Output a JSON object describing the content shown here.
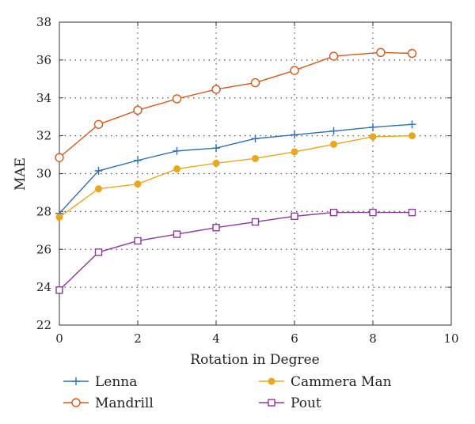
{
  "chart_data": {
    "type": "line",
    "xlabel": "Rotation in Degree",
    "ylabel": "MAE",
    "xlim": [
      0,
      10
    ],
    "ylim": [
      22,
      38
    ],
    "xticks": [
      0,
      2,
      4,
      6,
      8,
      10
    ],
    "yticks": [
      22,
      24,
      26,
      28,
      30,
      32,
      34,
      36,
      38
    ],
    "x_tick_labels": [
      "0",
      "2",
      "4",
      "6",
      "8",
      "10"
    ],
    "y_tick_labels": [
      "22",
      "24",
      "26",
      "28",
      "30",
      "32",
      "34",
      "36",
      "38"
    ],
    "grid": true,
    "legend_position": "bottom",
    "series": [
      {
        "name": "Lenna",
        "color": "#2f6fb5",
        "marker": "plus",
        "x": [
          0,
          1,
          2,
          3,
          4,
          5,
          6,
          7,
          8,
          9
        ],
        "y": [
          27.9,
          30.15,
          30.7,
          31.2,
          31.35,
          31.85,
          32.05,
          32.25,
          32.45,
          32.6
        ]
      },
      {
        "name": "Mandrill",
        "color": "#cf5b1f",
        "marker": "circle",
        "x": [
          0,
          1,
          2,
          3,
          4,
          5,
          6,
          7,
          8.2,
          9
        ],
        "y": [
          30.85,
          32.6,
          33.35,
          33.95,
          34.45,
          34.8,
          35.45,
          36.2,
          36.4,
          36.35
        ]
      },
      {
        "name": "Cammera Man",
        "color": "#e8a81e",
        "marker": "filled-circle",
        "x": [
          0,
          1,
          2,
          3,
          4,
          5,
          6,
          7,
          8,
          9
        ],
        "y": [
          27.7,
          29.2,
          29.45,
          30.25,
          30.55,
          30.8,
          31.15,
          31.55,
          31.95,
          32.0
        ]
      },
      {
        "name": "Pout",
        "color": "#8a3a97",
        "marker": "square",
        "x": [
          0,
          1,
          2,
          3,
          4,
          5,
          6,
          7,
          8,
          9
        ],
        "y": [
          23.85,
          25.85,
          26.45,
          26.8,
          27.15,
          27.45,
          27.75,
          27.95,
          27.95,
          27.95
        ]
      }
    ]
  }
}
